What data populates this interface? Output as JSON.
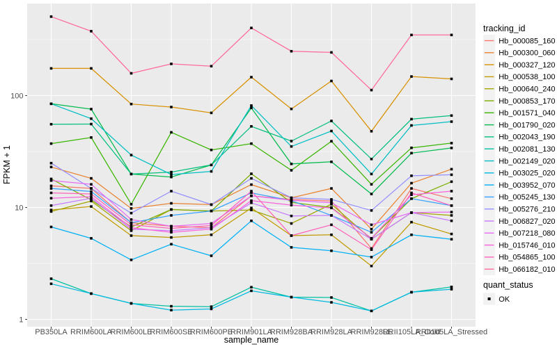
{
  "chart_data": {
    "type": "line",
    "title": "",
    "xlabel": "sample_name",
    "ylabel": "FPKM + 1",
    "y_scale": "log10",
    "grid": true,
    "legend_position": "right",
    "panel_bg": "#EBEBEB",
    "grid_color": "#FFFFFF",
    "legend_key_bg": "#F2F2F2",
    "tick_label_color": "#4D4D4D",
    "axis_title_color": "#000000",
    "point_shape": "square",
    "point_color": "#000000",
    "y_ticks": [
      1,
      10,
      100
    ],
    "y_tick_labels": [
      "1",
      "10",
      "100"
    ],
    "y_minor_ticks": [
      3.162,
      31.62,
      316.2
    ],
    "ylim": [
      0.85,
      650
    ],
    "x_categories": [
      "PB350LA",
      "RRIM600LA",
      "RRIM600LE",
      "RRIM600SE",
      "RRIM600PE",
      "RRIM901LA",
      "RRIM928BA",
      "RRIM928LA",
      "RRIM928LE",
      "RRII105LA_Cold",
      "RRII105LA_Stressed"
    ],
    "legends": {
      "tracking": {
        "title": "tracking_id"
      },
      "quant": {
        "title": "quant_status",
        "entries": [
          {
            "label": "OK",
            "shape": "square",
            "color": "#000000"
          }
        ]
      }
    },
    "series": [
      {
        "name": "Hb_000085_160",
        "color": "#F8766D",
        "values": [
          15.6,
          14.8,
          7.3,
          6.8,
          6.6,
          12.7,
          11.8,
          11.4,
          4.3,
          14.8,
          12.0
        ]
      },
      {
        "name": "Hb_000300_060",
        "color": "#EA8331",
        "values": [
          23.0,
          18.2,
          9.8,
          10.9,
          10.6,
          16.0,
          12.2,
          14.8,
          6.4,
          16.5,
          22.0
        ]
      },
      {
        "name": "Hb_000327_120",
        "color": "#D89000",
        "values": [
          175,
          175,
          84,
          79,
          70,
          146,
          76,
          135,
          48,
          148,
          141
        ]
      },
      {
        "name": "Hb_000538_100",
        "color": "#C09B00",
        "values": [
          9.5,
          10.2,
          5.6,
          5.4,
          5.7,
          9.9,
          5.6,
          5.7,
          3.0,
          7.4,
          5.8
        ]
      },
      {
        "name": "Hb_000640_240",
        "color": "#A3A500",
        "values": [
          9.2,
          11.4,
          6.2,
          9.6,
          9.3,
          9.5,
          7.2,
          10.7,
          5.2,
          9.0,
          8.5
        ]
      },
      {
        "name": "Hb_000853_170",
        "color": "#7CAE00",
        "values": [
          18.0,
          11.7,
          6.7,
          9.6,
          9.3,
          20.0,
          11.1,
          10.0,
          5.3,
          12.0,
          17.0
        ]
      },
      {
        "name": "Hb_001571_040",
        "color": "#39B600",
        "values": [
          37.2,
          42.2,
          10.7,
          46.9,
          32.7,
          37.2,
          21.5,
          39.1,
          16.1,
          34.1,
          37.6
        ]
      },
      {
        "name": "Hb_001790_020",
        "color": "#00BB4E",
        "values": [
          84.5,
          75.7,
          19.9,
          18.7,
          24.0,
          77.5,
          24.5,
          25.6,
          13.2,
          30.6,
          34.0
        ]
      },
      {
        "name": "Hb_002043_190",
        "color": "#00BF7D",
        "values": [
          55.5,
          55.6,
          19.9,
          20.7,
          24.0,
          53.1,
          39.2,
          59.3,
          27.1,
          61.6,
          66.2
        ]
      },
      {
        "name": "Hb_002081_130",
        "color": "#00C1A3",
        "values": [
          2.31,
          1.7,
          1.39,
          1.31,
          1.3,
          1.94,
          1.58,
          1.57,
          1.19,
          1.75,
          1.95
        ]
      },
      {
        "name": "Hb_002149_020",
        "color": "#00BFC4",
        "values": [
          84.5,
          62.2,
          29.4,
          19.7,
          21.0,
          81.4,
          35.1,
          48.2,
          19.9,
          54.1,
          58.5
        ]
      },
      {
        "name": "Hb_003025_020",
        "color": "#00BAE0",
        "values": [
          2.08,
          1.7,
          1.39,
          1.21,
          1.24,
          1.8,
          1.58,
          1.42,
          1.19,
          1.75,
          1.86
        ]
      },
      {
        "name": "Hb_003952_070",
        "color": "#00B0F6",
        "values": [
          6.7,
          5.3,
          3.4,
          4.7,
          3.7,
          7.6,
          4.4,
          4.1,
          3.6,
          5.7,
          5.2
        ]
      },
      {
        "name": "Hb_005245_130",
        "color": "#35A2FF",
        "values": [
          14.8,
          13.9,
          7.3,
          8.5,
          9.3,
          13.5,
          11.5,
          8.5,
          6.0,
          12.0,
          10.4
        ]
      },
      {
        "name": "Hb_005276_210",
        "color": "#9590FF",
        "values": [
          24.9,
          14.8,
          8.9,
          14.0,
          10.6,
          18.2,
          12.2,
          11.8,
          9.4,
          19.2,
          19.6
        ]
      },
      {
        "name": "Hb_006827_020",
        "color": "#C77CFF",
        "values": [
          10.4,
          12.1,
          6.4,
          6.2,
          6.6,
          11.0,
          8.4,
          8.5,
          5.2,
          9.0,
          7.6
        ]
      },
      {
        "name": "Hb_007218_080",
        "color": "#E76BF3",
        "values": [
          17.4,
          16.1,
          7.8,
          6.8,
          7.2,
          12.7,
          11.6,
          11.0,
          7.0,
          9.0,
          9.1
        ]
      },
      {
        "name": "Hb_015746_010",
        "color": "#FA62DB",
        "values": [
          12.1,
          12.5,
          6.6,
          6.0,
          6.4,
          11.5,
          10.5,
          9.9,
          5.3,
          13.0,
          14.0
        ]
      },
      {
        "name": "Hb_054865_100",
        "color": "#FF62BC",
        "values": [
          13.5,
          13.2,
          7.0,
          6.5,
          6.9,
          14.0,
          5.6,
          7.0,
          4.2,
          13.5,
          10.4
        ]
      },
      {
        "name": "Hb_066182_010",
        "color": "#FF6A98",
        "values": [
          508,
          376,
          158,
          192,
          183,
          402,
          249,
          243,
          112,
          348,
          348
        ]
      }
    ]
  }
}
